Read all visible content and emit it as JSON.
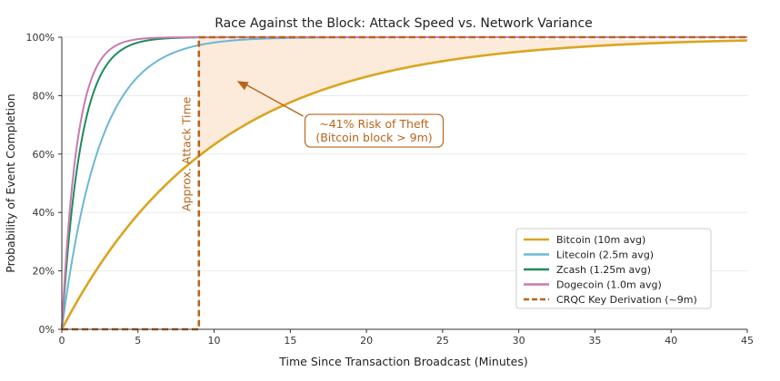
{
  "chart_data": {
    "type": "line",
    "title": "Race Against the Block: Attack Speed vs. Network Variance",
    "xlabel": "Time Since Transaction Broadcast (Minutes)",
    "ylabel": "Probability of Event Completion",
    "xlim": [
      0,
      45
    ],
    "ylim": [
      0,
      1
    ],
    "x_ticks": [
      0,
      5,
      10,
      15,
      20,
      25,
      30,
      35,
      40,
      45
    ],
    "x_tick_labels": [
      "0",
      "5",
      "10",
      "15",
      "20",
      "25",
      "30",
      "35",
      "40",
      "45"
    ],
    "y_ticks": [
      0,
      0.2,
      0.4,
      0.6,
      0.8,
      1.0
    ],
    "y_tick_labels": [
      "0%",
      "20%",
      "40%",
      "60%",
      "80%",
      "100%"
    ],
    "grid": true,
    "legend_position": "lower-right",
    "series": [
      {
        "name": "Bitcoin (10m avg)",
        "mean_minutes": 10,
        "color": "#DAA520",
        "style": "solid"
      },
      {
        "name": "Litecoin (2.5m avg)",
        "mean_minutes": 2.5,
        "color": "#6BB8D6",
        "style": "solid"
      },
      {
        "name": "Zcash (1.25m avg)",
        "mean_minutes": 1.25,
        "color": "#1E8C5A",
        "style": "solid"
      },
      {
        "name": "Dogecoin (1.0m avg)",
        "mean_minutes": 1.0,
        "color": "#C77BAF",
        "style": "solid"
      },
      {
        "name": "CRQC Key Derivation (~9m)",
        "step_at": 9,
        "color": "#B8651B",
        "style": "dashed"
      }
    ],
    "shaded_region": {
      "from_x": 9,
      "between": "Bitcoin and 100%",
      "color": "#FCEADB"
    },
    "annotations": [
      {
        "lines": [
          "~41% Risk of Theft",
          "(Bitcoin block > 9m)"
        ],
        "arrow_to": [
          11.5,
          0.85
        ],
        "text_at": [
          20.5,
          0.68
        ],
        "color": "#B8651B"
      },
      {
        "text": "Approx. Attack Time",
        "x": 8.2,
        "y": 0.6,
        "rotation": -90,
        "color": "#B8651B"
      }
    ]
  }
}
